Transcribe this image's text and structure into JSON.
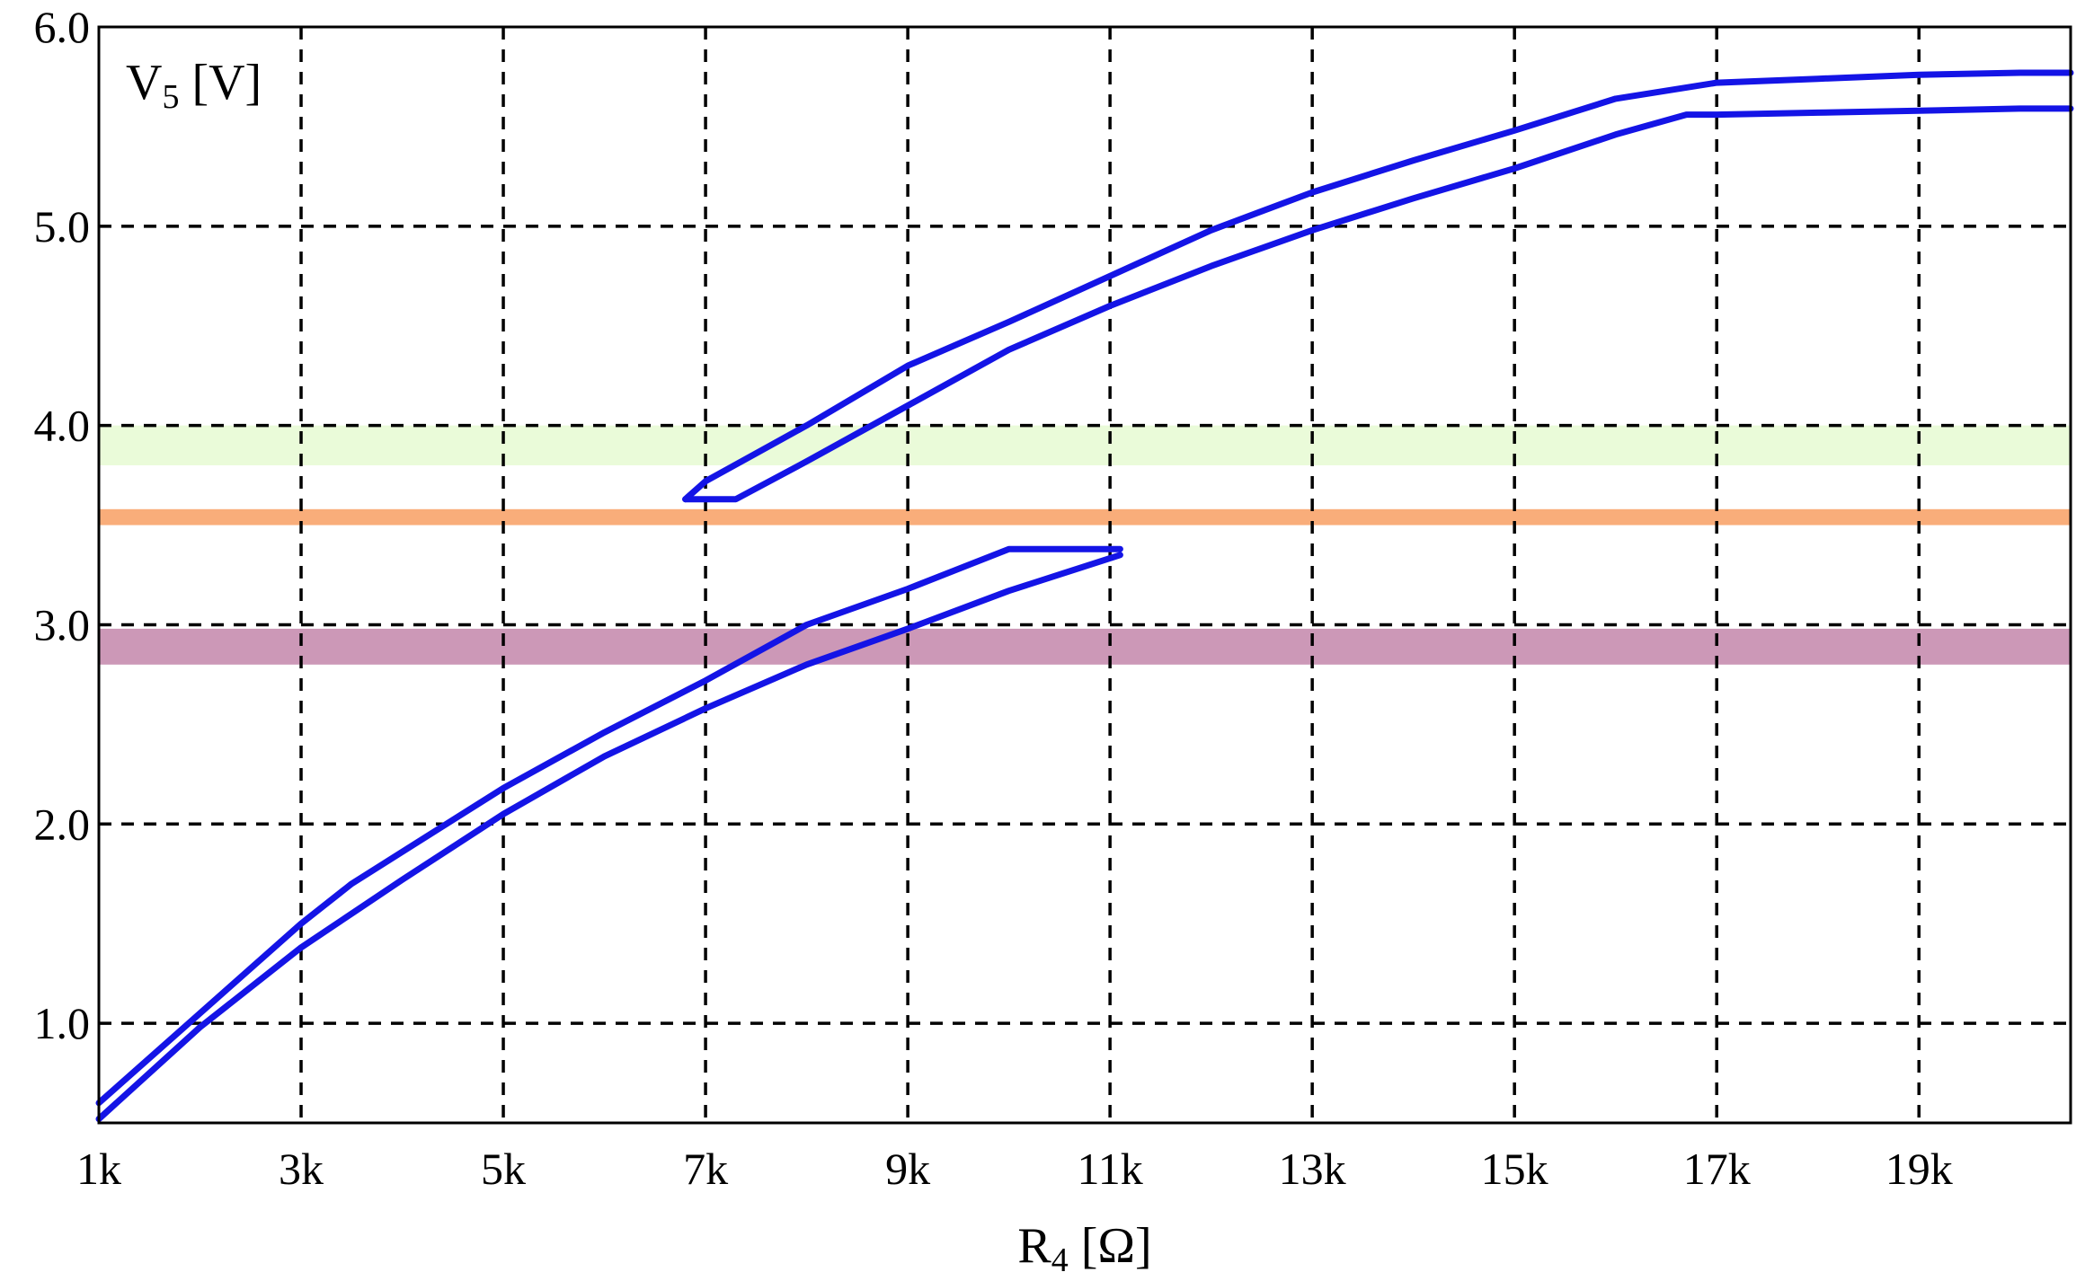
{
  "chart_data": {
    "type": "line",
    "xlabel": "R",
    "xlabel_sub": "4",
    "xlabel_unit": " [Ω]",
    "ylabel": "V",
    "ylabel_sub": "5",
    "ylabel_unit": " [V]",
    "xlim": [
      1000,
      20500
    ],
    "ylim": [
      0.5,
      6.0
    ],
    "x_ticks": [
      1000,
      3000,
      5000,
      7000,
      9000,
      11000,
      13000,
      15000,
      17000,
      19000
    ],
    "x_tick_labels": [
      "1k",
      "3k",
      "5k",
      "7k",
      "9k",
      "11k",
      "13k",
      "15k",
      "17k",
      "19k"
    ],
    "y_ticks": [
      1.0,
      2.0,
      3.0,
      4.0,
      5.0,
      6.0
    ],
    "y_tick_labels": [
      "1.0",
      "2.0",
      "3.0",
      "4.0",
      "5.0",
      "6.0"
    ],
    "grid": true,
    "legend": "none",
    "bands": [
      {
        "y0": 3.8,
        "y1": 4.0,
        "color": "#eafbd9"
      },
      {
        "y0": 3.5,
        "y1": 3.58,
        "color": "#f9ad7a"
      },
      {
        "y0": 2.8,
        "y1": 2.98,
        "color": "#cc98b7"
      }
    ],
    "series_color": "#1414e6",
    "series": [
      {
        "x": [
          1000,
          2000,
          3000,
          3500,
          4000,
          5000,
          6000,
          7000,
          8000,
          9000,
          10000,
          11100
        ],
        "y": [
          0.6,
          1.05,
          1.5,
          1.7,
          1.86,
          2.18,
          2.46,
          2.72,
          3.0,
          3.18,
          3.38,
          3.38
        ]
      },
      {
        "x": [
          1000,
          2000,
          3000,
          4000,
          5000,
          6000,
          7000,
          8000,
          9000,
          10000,
          11100
        ],
        "y": [
          0.52,
          0.98,
          1.38,
          1.72,
          2.05,
          2.34,
          2.58,
          2.8,
          2.98,
          3.17,
          3.35
        ]
      },
      {
        "x": [
          6800,
          7000,
          8000,
          9000,
          10000,
          11000,
          12000,
          13000,
          14000,
          15000,
          15500,
          16000,
          17000,
          18000,
          19000,
          20000,
          20500
        ],
        "y": [
          3.63,
          3.72,
          4.0,
          4.3,
          4.52,
          4.75,
          4.98,
          5.17,
          5.33,
          5.48,
          5.56,
          5.64,
          5.72,
          5.74,
          5.76,
          5.77,
          5.77
        ]
      },
      {
        "x": [
          6800,
          7300,
          8000,
          9000,
          10000,
          11000,
          12000,
          13000,
          14000,
          15000,
          16000,
          16700,
          17000,
          18000,
          19000,
          20000,
          20500
        ],
        "y": [
          3.63,
          3.63,
          3.82,
          4.1,
          4.38,
          4.6,
          4.8,
          4.98,
          5.14,
          5.29,
          5.46,
          5.56,
          5.56,
          5.57,
          5.58,
          5.59,
          5.59
        ]
      }
    ]
  }
}
